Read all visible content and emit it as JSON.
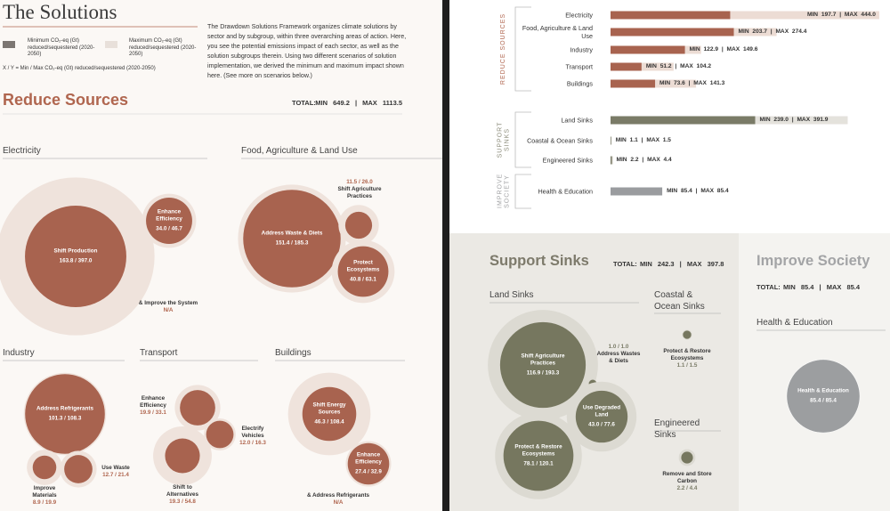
{
  "left": {
    "title": "The Solutions",
    "intro": "The Drawdown Solutions Framework organizes climate solutions by sector and by subgroup, within three overarching areas of action. Here, you see the potential emissions impact of each sector, as well as the solution subgroups therein. Using two different scenarios of solution implementation, we derived the minimum and maximum impact shown here. (See more on scenarios below.)",
    "legend": {
      "min_text": "Minimum CO₂-eq (Gt) reduced/sequestered (2020-2050)",
      "max_text": "Maximum CO₂-eq (Gt) reduced/sequestered (2020-2050)",
      "key": "X / Y = Min / Max CO₂-eq (Gt) reduced/sequestered (2020-2050)"
    },
    "section": {
      "title": "Reduce Sources",
      "total_label": "TOTAL:",
      "total": "MIN 649.2 | MAX 1113.5"
    },
    "groups": [
      {
        "title": "Electricity",
        "items": [
          {
            "name": "Shift Production",
            "label": "163.8 / 397.0",
            "min": 163.8,
            "max": 397.0
          },
          {
            "name": "Enhance Efficiency",
            "label": "34.0 / 46.7",
            "min": 34.0,
            "max": 46.7
          },
          {
            "name": "& Improve the System",
            "label": "N/A"
          }
        ]
      },
      {
        "title": "Food, Agriculture & Land Use",
        "items": [
          {
            "name": "Address Waste & Diets",
            "label": "151.4 / 185.3",
            "min": 151.4,
            "max": 185.3
          },
          {
            "name": "Shift Agriculture Practices",
            "label": "11.5 / 26.0",
            "min": 11.5,
            "max": 26.0
          },
          {
            "name": "Protect Ecosystems",
            "label": "40.8 / 63.1",
            "min": 40.8,
            "max": 63.1
          }
        ]
      },
      {
        "title": "Industry",
        "items": [
          {
            "name": "Address Refrigerants",
            "label": "101.3 / 108.3",
            "min": 101.3,
            "max": 108.3
          },
          {
            "name": "Improve Materials",
            "label": "8.9 / 19.9",
            "min": 8.9,
            "max": 19.9
          },
          {
            "name": "Use Waste",
            "label": "12.7 / 21.4",
            "min": 12.7,
            "max": 21.4
          }
        ]
      },
      {
        "title": "Transport",
        "items": [
          {
            "name": "Enhance Efficiency",
            "label": "19.9 / 33.1",
            "min": 19.9,
            "max": 33.1
          },
          {
            "name": "Electrify Vehicles",
            "label": "12.0 / 16.3",
            "min": 12.0,
            "max": 16.3
          },
          {
            "name": "Shift to Alternatives",
            "label": "19.3 / 54.8",
            "min": 19.3,
            "max": 54.8
          }
        ]
      },
      {
        "title": "Buildings",
        "items": [
          {
            "name": "Shift Energy Sources",
            "label": "46.3 / 108.4",
            "min": 46.3,
            "max": 108.4
          },
          {
            "name": "Enhance Efficiency",
            "label": "27.4 / 32.9",
            "min": 27.4,
            "max": 32.9
          },
          {
            "name": "& Address Refrigerants",
            "label": "N/A"
          }
        ]
      }
    ]
  },
  "bars": {
    "groups": [
      {
        "title": "REDUCE SOURCES",
        "rows": [
          {
            "name": "Electricity",
            "label": "MIN 197.7 | MAX 444.0",
            "min": 197.7,
            "max": 444.0
          },
          {
            "name": "Food, Agriculture & Land Use",
            "label": "MIN 203.7 | MAX 274.4",
            "min": 203.7,
            "max": 274.4
          },
          {
            "name": "Industry",
            "label": "MIN 122.9 | MAX 149.6",
            "min": 122.9,
            "max": 149.6
          },
          {
            "name": "Transport",
            "label": "MIN 51.2 | MAX 104.2",
            "min": 51.2,
            "max": 104.2
          },
          {
            "name": "Buildings",
            "label": "MIN 73.6 | MAX 141.3",
            "min": 73.6,
            "max": 141.3
          }
        ]
      },
      {
        "title": "SUPPORT SINKS",
        "rows": [
          {
            "name": "Land Sinks",
            "label": "MIN 239.0 | MAX 391.9",
            "min": 239.0,
            "max": 391.9
          },
          {
            "name": "Coastal & Ocean Sinks",
            "label": "MIN 1.1 | MAX 1.5",
            "min": 1.1,
            "max": 1.5
          },
          {
            "name": "Engineered Sinks",
            "label": "MIN 2.2 | MAX 4.4",
            "min": 2.2,
            "max": 4.4
          }
        ]
      },
      {
        "title": "IMPROVE SOCIETY",
        "rows": [
          {
            "name": "Health & Education",
            "label": "MIN 85.4 | MAX 85.4",
            "min": 85.4,
            "max": 85.4
          }
        ]
      }
    ]
  },
  "support": {
    "title": "Support Sinks",
    "total_label": "TOTAL:",
    "total": "MIN 242.3 | MAX 397.8",
    "groups": [
      {
        "title": "Land Sinks",
        "items": [
          {
            "name": "Shift Agriculture Practices",
            "label": "116.9 / 193.3",
            "min": 116.9,
            "max": 193.3
          },
          {
            "name": "Address Wastes & Diets",
            "label": "1.0 / 1.0",
            "min": 1.0,
            "max": 1.0
          },
          {
            "name": "Use Degraded Land",
            "label": "43.0 / 77.6",
            "min": 43.0,
            "max": 77.6
          },
          {
            "name": "Protect & Restore Ecosystems",
            "label": "78.1 / 120.1",
            "min": 78.1,
            "max": 120.1
          }
        ]
      },
      {
        "title": "Coastal & Ocean Sinks",
        "items": [
          {
            "name": "Protect & Restore Ecosystems",
            "label": "1.1 / 1.5",
            "min": 1.1,
            "max": 1.5
          }
        ]
      },
      {
        "title": "Engineered Sinks",
        "items": [
          {
            "name": "Remove and Store Carbon",
            "label": "2.2 / 4.4",
            "min": 2.2,
            "max": 4.4
          }
        ]
      }
    ]
  },
  "society": {
    "title": "Improve Society",
    "total_label": "TOTAL:",
    "total": "MIN 85.4 | MAX 85.4",
    "groups": [
      {
        "title": "Health & Education",
        "items": [
          {
            "name": "Health & Education",
            "label": "85.4 / 85.4",
            "min": 85.4,
            "max": 85.4
          }
        ]
      }
    ]
  }
}
